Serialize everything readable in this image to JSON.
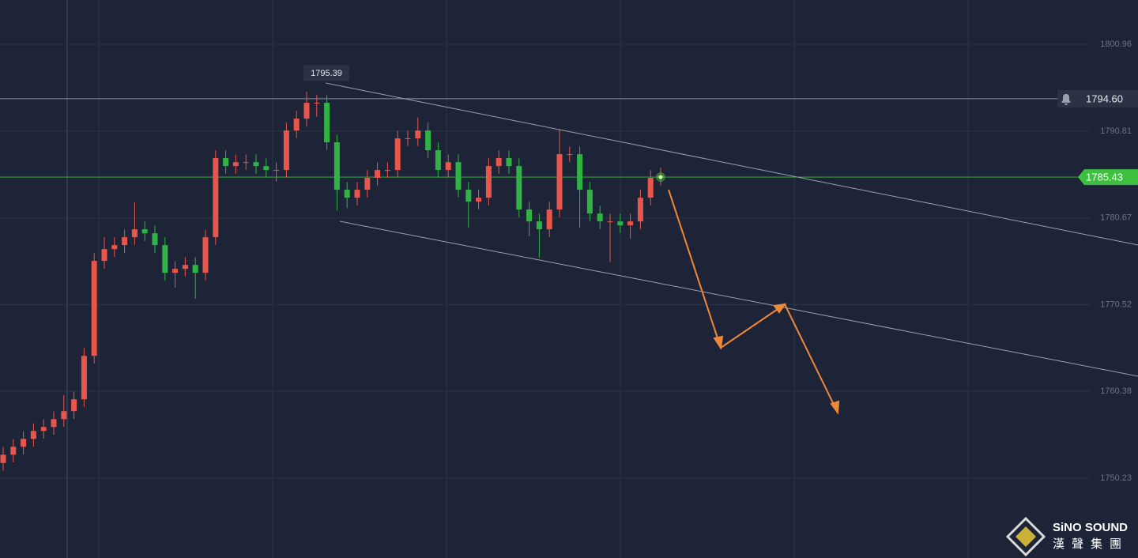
{
  "chart_data": {
    "type": "candlestick",
    "open": [
      1752.0,
      1752.97,
      1753.9,
      1754.82,
      1755.75,
      1756.21,
      1757.13,
      1758.06,
      1759.45,
      1764.53,
      1775.63,
      1777.01,
      1777.48,
      1778.4,
      1779.33,
      1778.86,
      1777.48,
      1774.24,
      1774.7,
      1775.16,
      1774.24,
      1778.4,
      1787.65,
      1786.72,
      1787.18,
      1787.18,
      1786.72,
      1786.26,
      1786.26,
      1790.88,
      1792.27,
      1794.12,
      1794.12,
      1789.5,
      1783.95,
      1783.02,
      1783.95,
      1785.34,
      1786.26,
      1786.26,
      1789.96,
      1789.96,
      1790.88,
      1788.57,
      1786.26,
      1787.18,
      1783.95,
      1782.56,
      1783.02,
      1786.72,
      1787.65,
      1786.72,
      1781.64,
      1780.25,
      1779.33,
      1781.64,
      1788.11,
      1788.11,
      1783.95,
      1781.17,
      1780.25,
      1780.25,
      1779.79,
      1780.25,
      1783.02,
      1785.34
    ],
    "high": [
      1753.87,
      1754.8,
      1755.72,
      1756.65,
      1757.11,
      1758.03,
      1759.96,
      1760.35,
      1765.43,
      1776.53,
      1778.41,
      1778.38,
      1779.3,
      1782.5,
      1780.23,
      1779.76,
      1778.38,
      1775.6,
      1776.06,
      1776.06,
      1779.3,
      1788.55,
      1788.55,
      1788.08,
      1788.08,
      1788.08,
      1787.62,
      1787.16,
      1791.78,
      1793.17,
      1795.39,
      1795.02,
      1795.02,
      1790.4,
      1784.85,
      1784.85,
      1786.24,
      1787.16,
      1787.16,
      1790.86,
      1790.86,
      1792.4,
      1791.78,
      1789.47,
      1788.08,
      1788.08,
      1784.85,
      1783.92,
      1787.62,
      1788.55,
      1788.55,
      1787.62,
      1782.54,
      1781.15,
      1782.54,
      1791.0,
      1789.01,
      1789.01,
      1784.85,
      1782.07,
      1781.15,
      1781.15,
      1781.15,
      1783.92,
      1786.24,
      1786.51
    ],
    "low": [
      1751.1,
      1752.07,
      1753.0,
      1753.92,
      1754.85,
      1755.31,
      1756.23,
      1757.16,
      1758.55,
      1763.63,
      1774.73,
      1776.11,
      1776.58,
      1777.5,
      1777.96,
      1776.58,
      1773.34,
      1772.5,
      1773.8,
      1771.2,
      1773.34,
      1777.5,
      1785.82,
      1785.82,
      1786.28,
      1785.82,
      1785.36,
      1784.9,
      1785.36,
      1789.98,
      1791.37,
      1792.5,
      1788.6,
      1781.5,
      1781.8,
      1782.12,
      1783.05,
      1784.44,
      1785.36,
      1785.36,
      1789.06,
      1789.06,
      1787.67,
      1785.36,
      1785.36,
      1783.05,
      1779.5,
      1781.66,
      1782.12,
      1785.82,
      1785.82,
      1780.74,
      1778.5,
      1776.0,
      1778.43,
      1780.74,
      1787.21,
      1779.5,
      1780.27,
      1779.35,
      1775.5,
      1778.89,
      1778.2,
      1779.35,
      1782.12,
      1784.44
    ],
    "close": [
      1752.97,
      1753.9,
      1754.82,
      1755.75,
      1756.21,
      1757.13,
      1758.06,
      1759.45,
      1764.53,
      1775.63,
      1777.01,
      1777.48,
      1778.4,
      1779.33,
      1778.86,
      1777.48,
      1774.24,
      1774.7,
      1775.16,
      1774.24,
      1778.4,
      1787.65,
      1786.72,
      1787.18,
      1787.18,
      1786.72,
      1786.26,
      1786.26,
      1790.88,
      1792.27,
      1794.12,
      1794.12,
      1789.5,
      1783.95,
      1783.02,
      1783.95,
      1785.34,
      1786.26,
      1786.26,
      1789.96,
      1789.96,
      1790.88,
      1788.57,
      1786.26,
      1787.18,
      1783.95,
      1782.56,
      1783.02,
      1786.72,
      1787.65,
      1786.72,
      1781.64,
      1780.25,
      1779.33,
      1781.64,
      1788.11,
      1788.11,
      1783.95,
      1781.17,
      1780.25,
      1780.25,
      1779.79,
      1780.25,
      1783.02,
      1785.34,
      1785.61
    ],
    "up_color": "#e8554a",
    "down_color": "#2fb344",
    "ylim": [
      1740.89,
      1806.14
    ],
    "yticks": [
      1800.96,
      1790.81,
      1780.67,
      1770.52,
      1760.38,
      1750.23
    ],
    "high_marker": 1795.39,
    "alert_line": {
      "value": 1794.6,
      "label": "1794.60"
    },
    "current_price": 1785.43,
    "current_color": "#3fbf3f"
  },
  "logo": {
    "brand": "SiNO SOUND",
    "chinese": "漢聲集團"
  }
}
